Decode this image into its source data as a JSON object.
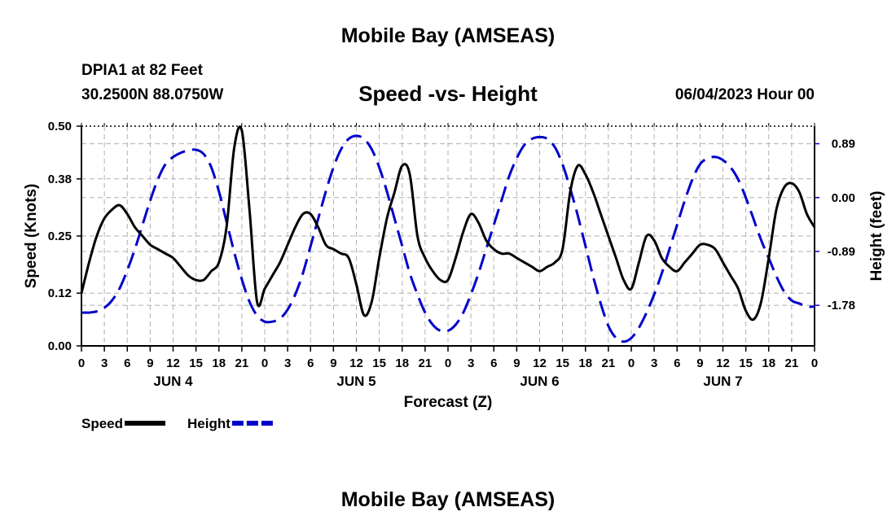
{
  "header": {
    "title": "Mobile Bay (AMSEAS)",
    "station": "DPIA1 at 82 Feet",
    "coords": "30.2500N  88.0750W",
    "subtitle": "Speed -vs- Height",
    "datetime": "06/04/2023 Hour 00"
  },
  "footer": {
    "title": "Mobile Bay (AMSEAS)"
  },
  "chart_data": {
    "type": "line",
    "title": "Speed -vs- Height",
    "xlabel": "Forecast (Z)",
    "ylabel": "Speed (Knots)",
    "y2label": "Height (feet)",
    "xlim": [
      0,
      96
    ],
    "ylim": [
      0,
      0.5
    ],
    "y2lim": [
      -2.45,
      1.18
    ],
    "yticks": [
      0.0,
      0.12,
      0.25,
      0.38,
      0.5
    ],
    "yticklabels": [
      "0.00",
      "0.12",
      "0.25",
      "0.38",
      "0.50"
    ],
    "y2ticks": [
      0.89,
      0.0,
      -0.89,
      -1.78
    ],
    "y2ticklabels": [
      "0.89",
      "0.00",
      "-0.89",
      "-1.78"
    ],
    "xticklabels": [
      "0",
      "3",
      "6",
      "9",
      "12",
      "15",
      "18",
      "21",
      "0",
      "3",
      "6",
      "9",
      "12",
      "15",
      "18",
      "21",
      "0",
      "3",
      "6",
      "9",
      "12",
      "15",
      "18",
      "21",
      "0",
      "3",
      "6",
      "9",
      "12",
      "15",
      "18",
      "21",
      "0"
    ],
    "day_labels": [
      {
        "label": "JUN 4",
        "hour": 12
      },
      {
        "label": "JUN 5",
        "hour": 36
      },
      {
        "label": "JUN 6",
        "hour": 60
      },
      {
        "label": "JUN 7",
        "hour": 84
      }
    ],
    "grid": true,
    "legend_position": "bottom-left",
    "series": [
      {
        "name": "Speed",
        "axis": "left",
        "color": "#000000",
        "dash": "solid",
        "x": [
          0,
          1,
          2,
          3,
          4,
          5,
          6,
          7,
          8,
          9,
          10,
          11,
          12,
          13,
          14,
          15,
          16,
          17,
          18,
          19,
          20,
          21,
          22,
          23,
          24,
          25,
          26,
          27,
          28,
          29,
          30,
          31,
          32,
          33,
          34,
          35,
          36,
          37,
          38,
          39,
          40,
          41,
          42,
          43,
          44,
          45,
          46,
          47,
          48,
          49,
          50,
          51,
          52,
          53,
          54,
          55,
          56,
          57,
          58,
          59,
          60,
          61,
          62,
          63,
          64,
          65,
          66,
          67,
          68,
          69,
          70,
          71,
          72,
          73,
          74,
          75,
          76,
          77,
          78,
          79,
          80,
          81,
          82,
          83,
          84,
          85,
          86,
          87,
          88,
          89,
          90,
          91,
          92,
          93,
          94,
          95,
          96
        ],
        "values": [
          0.12,
          0.19,
          0.25,
          0.29,
          0.31,
          0.32,
          0.3,
          0.27,
          0.25,
          0.23,
          0.22,
          0.21,
          0.2,
          0.18,
          0.16,
          0.15,
          0.15,
          0.17,
          0.19,
          0.27,
          0.45,
          0.49,
          0.31,
          0.1,
          0.13,
          0.16,
          0.19,
          0.23,
          0.27,
          0.3,
          0.3,
          0.27,
          0.23,
          0.22,
          0.21,
          0.2,
          0.14,
          0.07,
          0.1,
          0.2,
          0.29,
          0.35,
          0.41,
          0.39,
          0.25,
          0.2,
          0.17,
          0.15,
          0.15,
          0.2,
          0.26,
          0.3,
          0.28,
          0.24,
          0.22,
          0.21,
          0.21,
          0.2,
          0.19,
          0.18,
          0.17,
          0.18,
          0.19,
          0.22,
          0.35,
          0.41,
          0.39,
          0.35,
          0.3,
          0.25,
          0.2,
          0.15,
          0.13,
          0.19,
          0.25,
          0.24,
          0.2,
          0.18,
          0.17,
          0.19,
          0.21,
          0.23,
          0.23,
          0.22,
          0.19,
          0.16,
          0.13,
          0.08,
          0.06,
          0.1,
          0.2,
          0.31,
          0.36,
          0.37,
          0.35,
          0.3,
          0.27
        ]
      },
      {
        "name": "Height",
        "axis": "right",
        "color": "#0000cc",
        "dash": "dashed",
        "x": [
          0,
          1,
          2,
          3,
          4,
          5,
          6,
          7,
          8,
          9,
          10,
          11,
          12,
          13,
          14,
          15,
          16,
          17,
          18,
          19,
          20,
          21,
          22,
          23,
          24,
          25,
          26,
          27,
          28,
          29,
          30,
          31,
          32,
          33,
          34,
          35,
          36,
          37,
          38,
          39,
          40,
          41,
          42,
          43,
          44,
          45,
          46,
          47,
          48,
          49,
          50,
          51,
          52,
          53,
          54,
          55,
          56,
          57,
          58,
          59,
          60,
          61,
          62,
          63,
          64,
          65,
          66,
          67,
          68,
          69,
          70,
          71,
          72,
          73,
          74,
          75,
          76,
          77,
          78,
          79,
          80,
          81,
          82,
          83,
          84,
          85,
          86,
          87,
          88,
          89,
          90,
          91,
          92,
          93,
          94,
          95,
          96
        ],
        "values": [
          -1.9,
          -1.9,
          -1.88,
          -1.82,
          -1.7,
          -1.5,
          -1.2,
          -0.85,
          -0.45,
          -0.05,
          0.3,
          0.55,
          0.67,
          0.74,
          0.78,
          0.79,
          0.72,
          0.5,
          0.1,
          -0.4,
          -0.9,
          -1.35,
          -1.72,
          -1.95,
          -2.05,
          -2.05,
          -2.0,
          -1.85,
          -1.6,
          -1.25,
          -0.8,
          -0.35,
          0.1,
          0.5,
          0.8,
          0.97,
          1.02,
          0.97,
          0.8,
          0.5,
          0.1,
          -0.35,
          -0.8,
          -1.25,
          -1.6,
          -1.9,
          -2.1,
          -2.2,
          -2.2,
          -2.1,
          -1.9,
          -1.6,
          -1.25,
          -0.85,
          -0.45,
          -0.05,
          0.35,
          0.65,
          0.87,
          0.97,
          1.0,
          0.97,
          0.83,
          0.55,
          0.15,
          -0.3,
          -0.8,
          -1.3,
          -1.75,
          -2.12,
          -2.32,
          -2.38,
          -2.32,
          -2.15,
          -1.9,
          -1.6,
          -1.25,
          -0.85,
          -0.45,
          -0.05,
          0.3,
          0.55,
          0.65,
          0.67,
          0.62,
          0.5,
          0.3,
          0.0,
          -0.35,
          -0.7,
          -1.0,
          -1.3,
          -1.55,
          -1.7,
          -1.75,
          -1.8,
          -1.8
        ]
      }
    ]
  }
}
